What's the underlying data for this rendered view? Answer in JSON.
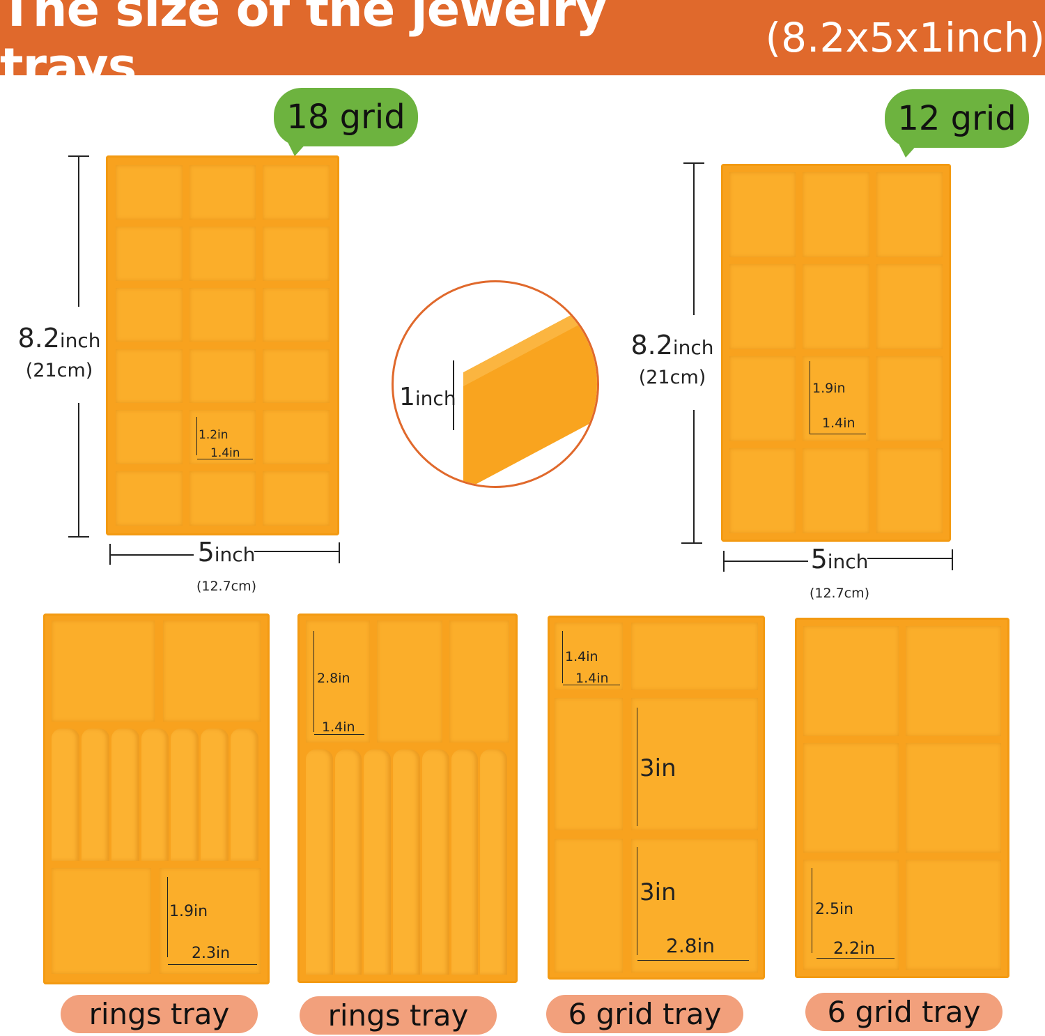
{
  "title": {
    "main": "The size of the jewelry trays",
    "dimensions": "(8.2x5x1inch)"
  },
  "colors": {
    "title_bar": "#e0692c",
    "tray": "#f8a21e",
    "bubble": "#6db33f",
    "pill": "#f2a07c"
  },
  "tray_18": {
    "badge": "18 grid",
    "height": "8.2",
    "height_unit": "inch",
    "height_cm": "(21cm)",
    "width": "5",
    "width_unit": "inch",
    "width_cm": "(12.7cm)",
    "cell_h": "1.2in",
    "cell_w": "1.4in"
  },
  "depth": {
    "value": "1",
    "unit": "inch"
  },
  "tray_12": {
    "badge": "12 grid",
    "height": "8.2",
    "height_unit": "inch",
    "height_cm": "(21cm)",
    "width": "5",
    "width_unit": "inch",
    "width_cm": "(12.7cm)",
    "cell_h": "1.9in",
    "cell_w": "1.4in"
  },
  "bottom": [
    {
      "label": "rings tray",
      "dims": [
        "1.9in",
        "2.3in"
      ]
    },
    {
      "label": "rings tray",
      "dims": [
        "2.8in",
        "1.4in"
      ]
    },
    {
      "label": "6 grid tray",
      "dims": [
        "1.4in",
        "1.4in",
        "3in",
        "3in",
        "2.8in"
      ]
    },
    {
      "label": "6 grid tray",
      "dims": [
        "2.5in",
        "2.2in"
      ]
    }
  ]
}
